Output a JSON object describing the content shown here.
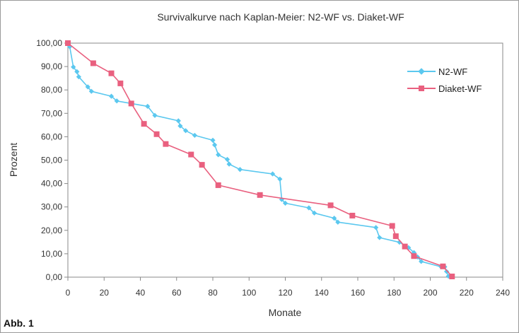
{
  "figure_label": "Abb. 1",
  "colors": {
    "series1": "#5bc8ef",
    "series2": "#e9607f",
    "axis": "#888888",
    "text": "#333333"
  },
  "chart_data": {
    "type": "line",
    "title": "Survivalkurve nach Kaplan-Meier: N2-WF vs. Diaket-WF",
    "xlabel": "Monate",
    "ylabel": "Prozent",
    "xlim": [
      0,
      240
    ],
    "ylim": [
      0,
      100
    ],
    "x_ticks": [
      0,
      20,
      40,
      60,
      80,
      100,
      120,
      140,
      160,
      180,
      200,
      220,
      240
    ],
    "y_ticks": [
      0,
      10,
      20,
      30,
      40,
      50,
      60,
      70,
      80,
      90,
      100
    ],
    "y_tick_labels": [
      "0,00",
      "10,00",
      "20,00",
      "30,00",
      "40,00",
      "50,00",
      "60,00",
      "70,00",
      "80,00",
      "90,00",
      "100,00"
    ],
    "grid": false,
    "legend_position": "right",
    "series": [
      {
        "name": "N2-WF",
        "marker": "diamond",
        "points": [
          [
            0,
            100
          ],
          [
            1,
            98.5
          ],
          [
            3,
            89.8
          ],
          [
            5,
            87.8
          ],
          [
            6,
            85.6
          ],
          [
            11,
            81.3
          ],
          [
            13,
            79.4
          ],
          [
            24,
            77.3
          ],
          [
            27,
            75.3
          ],
          [
            44,
            73.0
          ],
          [
            48,
            69.1
          ],
          [
            61,
            66.8
          ],
          [
            62,
            64.6
          ],
          [
            65,
            62.6
          ],
          [
            70,
            60.6
          ],
          [
            80,
            58.5
          ],
          [
            81,
            56.5
          ],
          [
            83,
            52.3
          ],
          [
            88,
            50.3
          ],
          [
            89,
            48.3
          ],
          [
            95,
            46.0
          ],
          [
            113,
            44.1
          ],
          [
            117,
            41.9
          ],
          [
            118,
            33.2
          ],
          [
            120,
            31.6
          ],
          [
            133,
            29.6
          ],
          [
            136,
            27.4
          ],
          [
            147,
            25.2
          ],
          [
            149,
            23.5
          ],
          [
            170,
            21.2
          ],
          [
            172,
            16.9
          ],
          [
            183,
            14.9
          ],
          [
            188,
            12.6
          ],
          [
            191,
            10.5
          ],
          [
            193,
            8.6
          ],
          [
            195,
            6.7
          ],
          [
            206,
            4.4
          ],
          [
            208,
            4.4
          ],
          [
            209,
            2.4
          ],
          [
            210,
            0.4
          ]
        ]
      },
      {
        "name": "Diaket-WF",
        "marker": "square",
        "points": [
          [
            0,
            100
          ],
          [
            14,
            91.4
          ],
          [
            24,
            87.1
          ],
          [
            29,
            82.8
          ],
          [
            35,
            74.2
          ],
          [
            42,
            65.5
          ],
          [
            49,
            61.1
          ],
          [
            54,
            56.9
          ],
          [
            68,
            52.4
          ],
          [
            74,
            48.0
          ],
          [
            83,
            39.3
          ],
          [
            106,
            35.1
          ],
          [
            145,
            30.7
          ],
          [
            157,
            26.3
          ],
          [
            179,
            21.9
          ],
          [
            181,
            17.5
          ],
          [
            186,
            13.1
          ],
          [
            191,
            9.0
          ],
          [
            207,
            4.6
          ],
          [
            212,
            0.3
          ]
        ]
      }
    ]
  }
}
